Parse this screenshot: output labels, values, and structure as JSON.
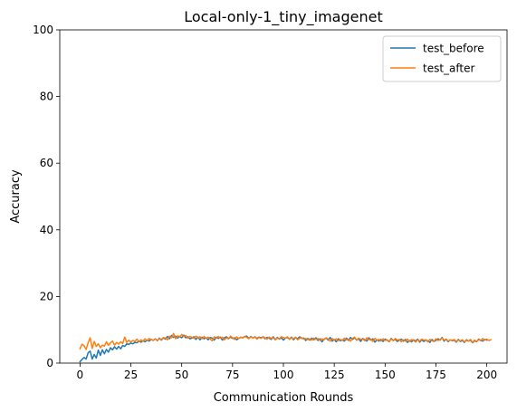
{
  "chart_data": {
    "type": "line",
    "title": "Local-only-1_tiny_imagenet",
    "xlabel": "Communication Rounds",
    "ylabel": "Accuracy",
    "xlim": [
      -9.95,
      209.95
    ],
    "ylim": [
      0,
      100
    ],
    "xticks": [
      0,
      25,
      50,
      75,
      100,
      125,
      150,
      175,
      200
    ],
    "yticks": [
      0,
      20,
      40,
      60,
      80,
      100
    ],
    "grid": false,
    "legend": "top-right",
    "series": [
      {
        "name": "test_before",
        "color": "#1f77b4",
        "x_start": 0,
        "values": [
          0.4,
          1.1,
          1.7,
          1.2,
          3.1,
          3.6,
          1.2,
          2.6,
          1.5,
          3.9,
          2.3,
          4.0,
          2.8,
          4.1,
          3.3,
          4.6,
          4.0,
          4.9,
          4.2,
          5.0,
          4.3,
          5.3,
          5.0,
          5.8,
          5.6,
          6.0,
          5.8,
          6.2,
          6.1,
          6.6,
          6.3,
          6.7,
          6.4,
          6.9,
          6.6,
          7.1,
          6.8,
          7.3,
          6.7,
          7.5,
          6.9,
          7.6,
          7.2,
          8.0,
          7.3,
          8.3,
          7.7,
          8.1,
          7.5,
          8.0,
          7.6,
          8.4,
          7.6,
          7.9,
          7.3,
          7.5,
          7.9,
          7.1,
          7.8,
          7.0,
          7.8,
          7.3,
          7.6,
          7.0,
          7.7,
          7.5,
          6.9,
          7.8,
          7.4,
          7.8,
          6.9,
          7.6,
          7.9,
          7.3,
          7.8,
          7.4,
          7.6,
          7.0,
          7.4,
          7.7,
          7.6,
          8.0,
          8.1,
          7.4,
          8.0,
          7.5,
          7.9,
          7.4,
          7.8,
          7.6,
          7.9,
          7.3,
          7.7,
          7.5,
          7.1,
          7.9,
          7.0,
          7.7,
          7.2,
          7.6,
          6.9,
          7.5,
          7.7,
          7.2,
          7.8,
          7.0,
          7.7,
          7.3,
          7.9,
          7.4,
          7.5,
          6.8,
          7.4,
          6.9,
          7.5,
          7.0,
          7.6,
          6.8,
          7.3,
          6.4,
          7.2,
          7.5,
          6.9,
          7.7,
          6.6,
          7.1,
          6.4,
          7.3,
          6.7,
          7.0,
          6.6,
          7.5,
          6.8,
          7.7,
          7.1,
          7.6,
          6.9,
          7.3,
          6.5,
          7.4,
          7.0,
          6.6,
          7.6,
          6.9,
          7.3,
          6.3,
          7.0,
          6.6,
          7.1,
          6.5,
          7.2,
          6.9,
          6.4,
          7.4,
          6.8,
          7.1,
          6.5,
          6.9,
          7.2,
          6.6,
          7.1,
          6.2,
          6.8,
          6.4,
          7.0,
          6.6,
          7.2,
          6.3,
          7.0,
          6.5,
          6.9,
          6.7,
          6.2,
          7.1,
          6.5,
          6.8,
          7.3,
          6.9,
          7.7,
          6.6,
          7.2,
          6.4,
          7.0,
          6.7,
          6.9,
          6.3,
          7.1,
          6.5,
          6.8,
          6.2,
          7.0,
          6.6,
          6.9,
          6.1,
          6.7,
          6.4,
          7.2,
          6.8,
          6.6,
          7.1,
          6.9
        ]
      },
      {
        "name": "test_after",
        "color": "#ff7f0e",
        "x_start": 0,
        "values": [
          4.3,
          5.7,
          5.2,
          4.1,
          6.1,
          7.6,
          4.4,
          6.5,
          5.0,
          5.8,
          4.6,
          5.4,
          5.1,
          6.4,
          5.3,
          6.1,
          6.6,
          5.4,
          6.2,
          5.7,
          6.4,
          5.9,
          7.8,
          6.2,
          6.9,
          6.3,
          6.8,
          6.5,
          7.2,
          6.4,
          7.0,
          6.6,
          7.3,
          6.7,
          7.4,
          7.0,
          6.9,
          7.2,
          6.8,
          7.3,
          7.1,
          7.7,
          7.5,
          7.0,
          8.1,
          7.6,
          8.9,
          7.3,
          8.2,
          7.8,
          8.6,
          7.9,
          8.3,
          7.5,
          8.0,
          7.8,
          7.4,
          8.1,
          7.6,
          7.9,
          7.3,
          8.0,
          7.5,
          7.8,
          7.2,
          6.7,
          7.9,
          7.4,
          8.0,
          7.5,
          7.8,
          7.0,
          7.6,
          7.3,
          8.1,
          7.6,
          7.1,
          7.9,
          7.4,
          7.8,
          7.5,
          8.0,
          7.7,
          7.3,
          7.9,
          7.5,
          7.8,
          7.2,
          7.7,
          7.4,
          7.9,
          7.6,
          7.2,
          7.8,
          7.4,
          7.6,
          7.0,
          7.5,
          7.3,
          7.9,
          7.7,
          7.5,
          7.9,
          7.1,
          7.6,
          7.3,
          7.8,
          7.0,
          7.5,
          7.6,
          7.2,
          7.4,
          7.0,
          7.3,
          6.9,
          7.5,
          7.1,
          7.4,
          6.8,
          7.3,
          7.0,
          7.6,
          7.2,
          6.6,
          7.4,
          6.9,
          7.3,
          6.7,
          7.1,
          6.8,
          7.5,
          7.0,
          7.2,
          6.6,
          7.4,
          7.8,
          6.9,
          7.5,
          7.1,
          7.3,
          6.7,
          7.6,
          7.0,
          7.2,
          6.5,
          7.4,
          6.9,
          7.1,
          6.6,
          7.3,
          6.8,
          7.0,
          6.5,
          7.2,
          6.7,
          7.4,
          6.9,
          7.1,
          6.4,
          7.0,
          6.6,
          7.2,
          6.5,
          7.1,
          6.8,
          6.3,
          7.0,
          6.6,
          7.2,
          6.9,
          7.0,
          6.4,
          7.1,
          6.7,
          6.5,
          7.3,
          6.8,
          7.0,
          7.5,
          6.9,
          7.2,
          6.6,
          7.0,
          6.8,
          7.1,
          6.5,
          6.9,
          6.7,
          7.0,
          6.4,
          6.8,
          6.6,
          7.1,
          6.2,
          6.9,
          6.5,
          7.0,
          6.8,
          7.4,
          6.9,
          7.2,
          6.8,
          7.0
        ]
      }
    ]
  }
}
